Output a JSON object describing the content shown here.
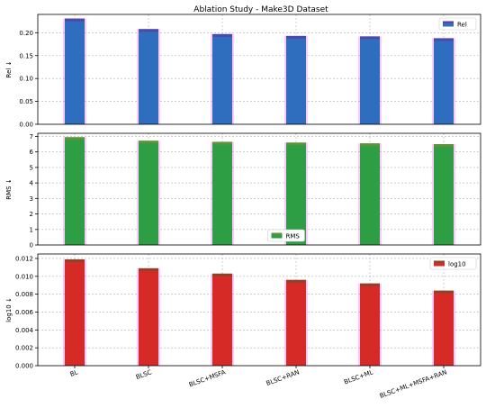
{
  "chart_data": {
    "title": "Ablation Study - Make3D Dataset",
    "type": "bar",
    "categories": [
      "BL",
      "BLSC",
      "BLSC+MSFA",
      "BLSC+RAN",
      "BLSC+ML",
      "BLSC+ML+MSFA+RAN"
    ],
    "grid": true,
    "panels": [
      {
        "ylabel": "Rel ↓",
        "legend": "Rel",
        "legend_position": "upper-right",
        "color": "#2f6dbf",
        "shadow_color": "#5a3fa0",
        "values": [
          0.231,
          0.208,
          0.197,
          0.193,
          0.192,
          0.188
        ],
        "ylim": [
          0,
          0.24
        ],
        "yticks": [
          0.0,
          0.05,
          0.1,
          0.15,
          0.2
        ],
        "ytick_labels": [
          "0.00",
          "0.05",
          "0.10",
          "0.15",
          "0.20"
        ]
      },
      {
        "ylabel": "RMS ↓",
        "legend": "RMS",
        "legend_position": "lower-center",
        "color": "#2e9e44",
        "shadow_color": "#6a8f3a",
        "values": [
          6.95,
          6.72,
          6.65,
          6.6,
          6.55,
          6.5
        ],
        "ylim": [
          0,
          7.2
        ],
        "yticks": [
          0,
          1,
          2,
          3,
          4,
          5,
          6,
          7
        ],
        "ytick_labels": [
          "0",
          "1",
          "2",
          "3",
          "4",
          "5",
          "6",
          "7"
        ]
      },
      {
        "ylabel": "log10 ↓",
        "legend": "log10",
        "legend_position": "upper-right",
        "color": "#d62a27",
        "shadow_color": "#7a4a2a",
        "values": [
          0.0119,
          0.0109,
          0.0103,
          0.0096,
          0.0092,
          0.0084
        ],
        "ylim": [
          0,
          0.0125
        ],
        "yticks": [
          0.0,
          0.002,
          0.004,
          0.006,
          0.008,
          0.01,
          0.012
        ],
        "ytick_labels": [
          "0.000",
          "0.002",
          "0.004",
          "0.006",
          "0.008",
          "0.010",
          "0.012"
        ]
      }
    ]
  }
}
